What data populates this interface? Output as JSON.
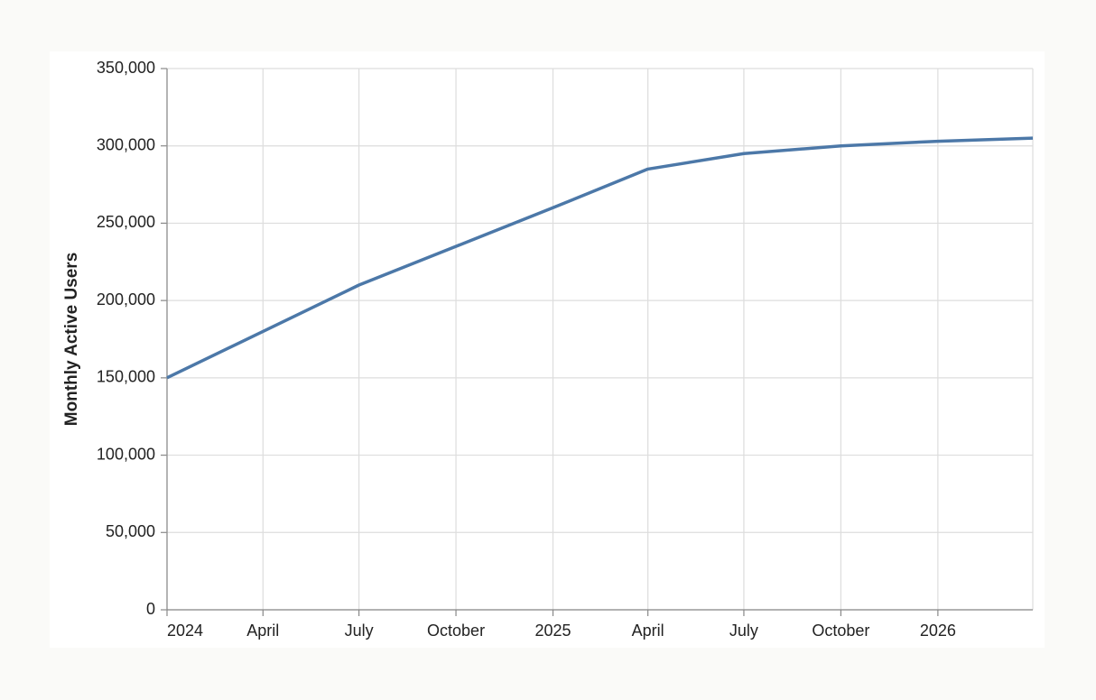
{
  "chart_data": {
    "type": "line",
    "y_label": "Monthly Active Users",
    "x": [
      "2024-01",
      "2024-04",
      "2024-07",
      "2024-10",
      "2025-01",
      "2025-04",
      "2025-07",
      "2025-10",
      "2026-01",
      "2026-04"
    ],
    "values": [
      150000,
      180000,
      210000,
      235000,
      260000,
      285000,
      295000,
      300000,
      303000,
      305000
    ],
    "color": "#4c78a8",
    "xlim": [
      "2024-01",
      "2026-04"
    ],
    "xticks": [
      {
        "value": "2024-01",
        "label": "2024"
      },
      {
        "value": "2024-04",
        "label": "April"
      },
      {
        "value": "2024-07",
        "label": "July"
      },
      {
        "value": "2024-10",
        "label": "October"
      },
      {
        "value": "2025-01",
        "label": "2025"
      },
      {
        "value": "2025-04",
        "label": "April"
      },
      {
        "value": "2025-07",
        "label": "July"
      },
      {
        "value": "2025-10",
        "label": "October"
      },
      {
        "value": "2026-01",
        "label": "2026"
      }
    ],
    "ylim": [
      0,
      350000
    ],
    "yticks": [
      0,
      {
        "value": 50000,
        "label": "50,000"
      },
      {
        "value": 100000,
        "label": "100,000"
      },
      {
        "value": 150000,
        "label": "150,000"
      },
      {
        "value": 200000,
        "label": "200,000"
      },
      {
        "value": 250000,
        "label": "250,000"
      },
      {
        "value": 300000,
        "label": "300,000"
      },
      {
        "value": 350000,
        "label": "350,000"
      }
    ],
    "grid": true
  }
}
